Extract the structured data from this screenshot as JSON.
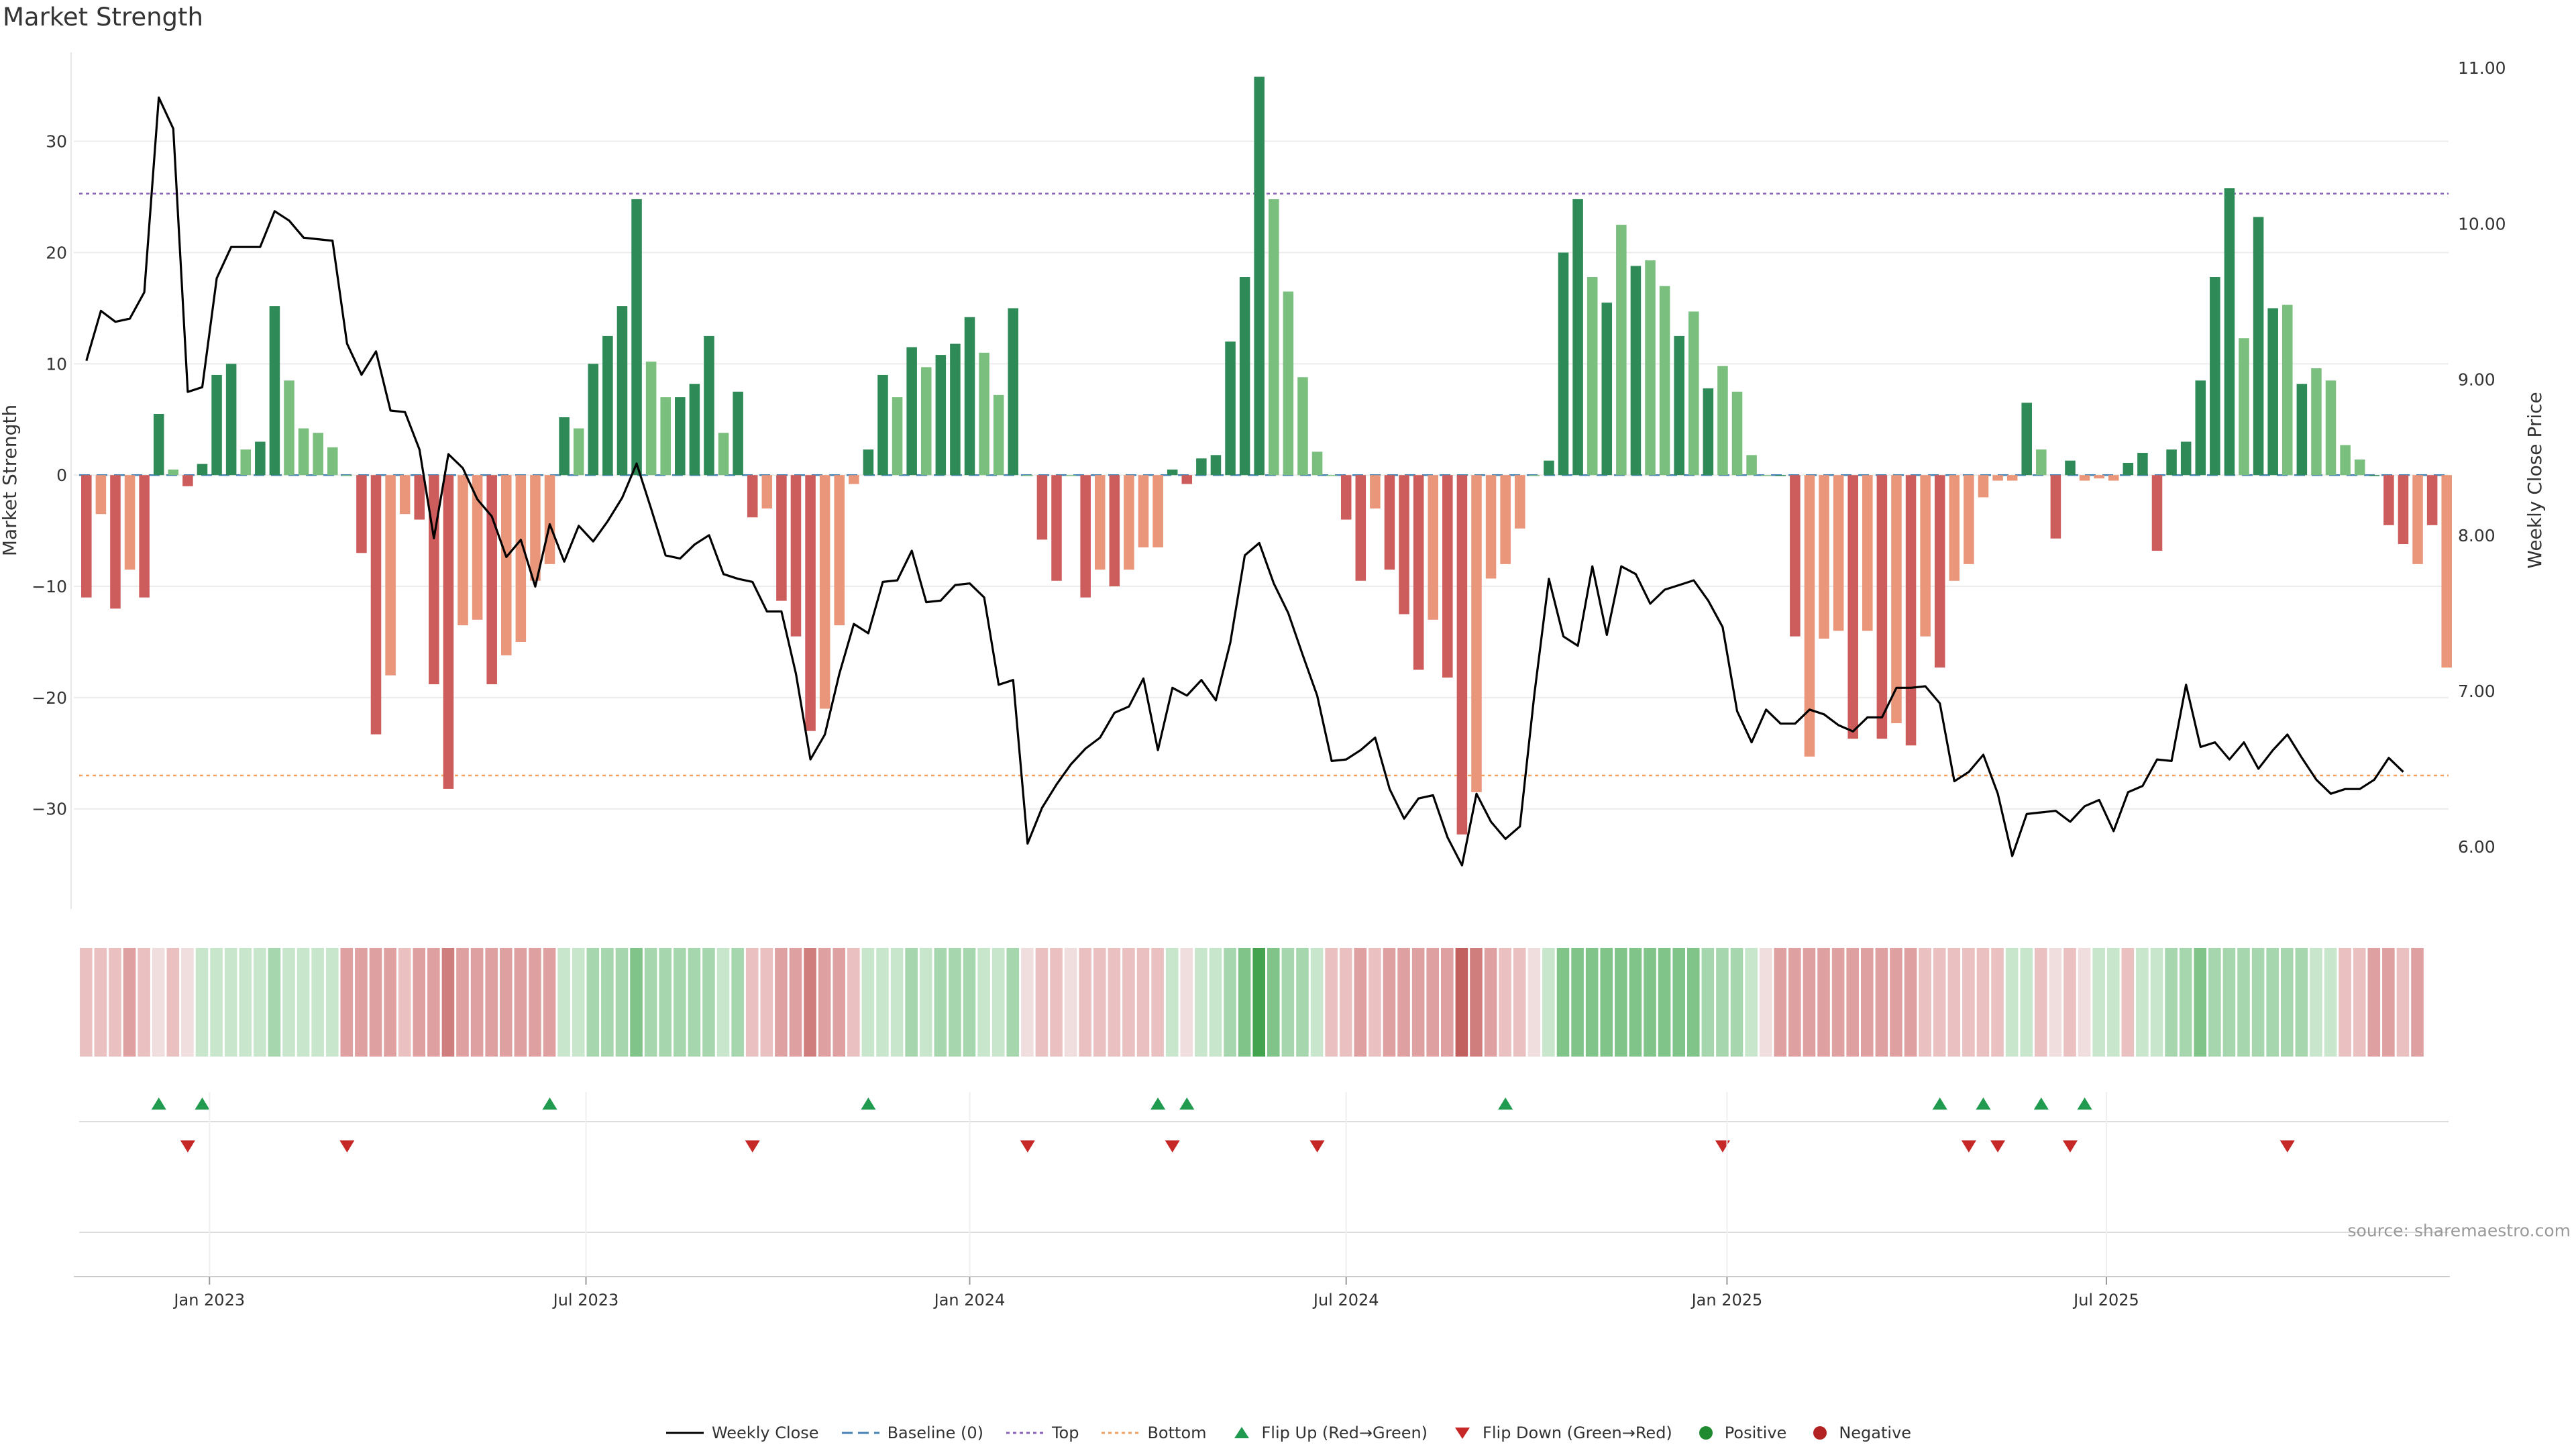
{
  "title": "Market Strength",
  "source": "source: sharemaestro.com",
  "colors": {
    "strong_green": "#2e8b57",
    "light_green": "#7bbf7f",
    "strong_red": "#cd5c5c",
    "light_red": "#e9967a",
    "price_line": "#000000",
    "baseline": "#4682b4",
    "top": "#8a63b8",
    "bottom": "#f0a060",
    "flip_up": "#1f9a4f",
    "flip_down": "#c62828"
  },
  "chart_data": {
    "type": "bar",
    "title": "Market Strength",
    "ylabel": "Market Strength",
    "y2label": "Weekly Close Price",
    "ylim": [
      -39,
      38
    ],
    "y2lim": [
      5.6,
      11.1
    ],
    "yticks": [
      -30,
      -20,
      -10,
      0,
      10,
      20,
      30
    ],
    "ytick_labels": [
      "−30",
      "−20",
      "−10",
      "0",
      "10",
      "20",
      "30"
    ],
    "y2ticks": [
      6.0,
      7.0,
      8.0,
      9.0,
      10.0,
      11.0
    ],
    "y2tick_labels": [
      "6.00",
      "7.00",
      "8.00",
      "9.00",
      "10.00",
      "11.00"
    ],
    "xticks": [
      {
        "label": "Jan 2023",
        "week": 9
      },
      {
        "label": "Jul 2023",
        "week": 35
      },
      {
        "label": "Jan 2024",
        "week": 61.5
      },
      {
        "label": "Jul 2024",
        "week": 87.5
      },
      {
        "label": "Jan 2025",
        "week": 113.8
      },
      {
        "label": "Jul 2025",
        "week": 140
      }
    ],
    "top_line": 25.3,
    "bottom_line": -27,
    "strength": [
      -11,
      -3.5,
      -12,
      -8.5,
      -11,
      5.5,
      0.5,
      -1,
      1,
      9,
      10,
      2.3,
      3,
      15.2,
      8.5,
      4.2,
      3.8,
      2.5,
      0,
      -7,
      -23.3,
      -18,
      -3.5,
      -4,
      -18.8,
      -28.2,
      -13.5,
      -13,
      -18.8,
      -16.2,
      -15,
      -9.5,
      -8,
      5.2,
      4.2,
      10,
      12.5,
      15.2,
      24.8,
      10.2,
      7,
      7,
      8.2,
      12.5,
      3.8,
      7.5,
      -3.8,
      -3,
      -11.3,
      -14.5,
      -23,
      -21,
      -13.5,
      -0.8,
      2.3,
      9,
      7,
      11.5,
      9.7,
      10.8,
      11.8,
      14.2,
      11,
      7.2,
      15,
      0,
      -5.8,
      -9.5,
      0,
      -11,
      -8.5,
      -10,
      -8.5,
      -6.5,
      -6.5,
      0.5,
      -0.8,
      1.5,
      1.8,
      12,
      17.8,
      35.8,
      24.8,
      16.5,
      8.8,
      2.1,
      0,
      -4,
      -9.5,
      -3,
      -8.5,
      -12.5,
      -17.5,
      -13,
      -18.2,
      -32.3,
      -28.5,
      -9.3,
      -8,
      -4.8,
      0,
      1.3,
      20,
      24.8,
      17.8,
      15.5,
      22.5,
      18.8,
      19.3,
      17,
      12.5,
      14.7,
      7.8,
      9.8,
      7.5,
      1.8,
      0,
      0,
      -14.5,
      -25.3,
      -14.7,
      -14,
      -23.7,
      -14,
      -23.7,
      -22.3,
      -24.3,
      -14.5,
      -17.3,
      -9.5,
      -8,
      -2,
      -0.5,
      -0.5,
      6.5,
      2.3,
      -5.7,
      1.3,
      -0.5,
      -0.3,
      -0.5,
      1.1,
      2,
      -6.8,
      2.3,
      3,
      8.5,
      17.8,
      25.8,
      12.3,
      23.2,
      15,
      15.3,
      8.2,
      9.6,
      8.5,
      2.7,
      1.4,
      0,
      -4.5,
      -6.2,
      -8,
      -4.5,
      -17.3
    ],
    "bar_shade": [
      2,
      1,
      2,
      1,
      2,
      2,
      1,
      2,
      2,
      2,
      2,
      1,
      2,
      2,
      1,
      1,
      1,
      1,
      0,
      2,
      2,
      1,
      1,
      2,
      2,
      2,
      1,
      1,
      2,
      1,
      1,
      1,
      1,
      2,
      1,
      2,
      2,
      2,
      2,
      1,
      1,
      2,
      2,
      2,
      1,
      2,
      2,
      1,
      2,
      2,
      2,
      1,
      1,
      1,
      2,
      2,
      1,
      2,
      1,
      2,
      2,
      2,
      1,
      1,
      2,
      0,
      2,
      2,
      0,
      2,
      1,
      2,
      1,
      1,
      1,
      2,
      2,
      2,
      2,
      2,
      2,
      2,
      1,
      1,
      1,
      1,
      0,
      2,
      2,
      1,
      2,
      2,
      2,
      1,
      2,
      2,
      1,
      1,
      1,
      1,
      0,
      2,
      2,
      2,
      1,
      2,
      1,
      2,
      1,
      1,
      2,
      1,
      2,
      1,
      1,
      0,
      0,
      2,
      2,
      1,
      1,
      1,
      2,
      1,
      2,
      1,
      2,
      1,
      2,
      1,
      1,
      1,
      1,
      1,
      2,
      1,
      2,
      2,
      1,
      1,
      1,
      2,
      2,
      2,
      2,
      2,
      2,
      2,
      2,
      1,
      2,
      2,
      1,
      2,
      1,
      1,
      1,
      0,
      2,
      2,
      2,
      1,
      2
    ],
    "price": [
      9.12,
      9.44,
      9.37,
      9.39,
      9.56,
      10.81,
      10.61,
      8.92,
      8.95,
      9.65,
      9.85,
      9.85,
      9.85,
      10.08,
      10.02,
      9.91,
      9.9,
      9.89,
      9.23,
      9.03,
      9.18,
      8.8,
      8.79,
      8.55,
      7.98,
      8.52,
      8.43,
      8.23,
      8.12,
      7.86,
      7.97,
      7.67,
      8.07,
      7.83,
      8.06,
      7.96,
      8.09,
      8.24,
      8.46,
      8.17,
      7.87,
      7.85,
      7.94,
      8.0,
      7.75,
      7.72,
      7.7,
      7.51,
      7.51,
      7.11,
      6.56,
      6.72,
      7.11,
      7.43,
      7.37,
      7.7,
      7.71,
      7.9,
      7.57,
      7.58,
      7.68,
      7.69,
      7.6,
      7.04,
      7.07,
      6.02,
      6.25,
      6.4,
      6.53,
      6.63,
      6.7,
      6.86,
      6.9,
      7.08,
      6.62,
      7.02,
      6.97,
      7.07,
      6.94,
      7.31,
      7.87,
      7.95,
      7.69,
      7.5,
      7.23,
      6.97,
      6.55,
      6.56,
      6.62,
      6.7,
      6.37,
      6.18,
      6.31,
      6.33,
      6.06,
      5.88,
      6.34,
      6.16,
      6.05,
      6.13,
      6.98,
      7.72,
      7.35,
      7.29,
      7.8,
      7.36,
      7.8,
      7.75,
      7.56,
      7.65,
      7.68,
      7.71,
      7.58,
      7.41,
      6.87,
      6.67,
      6.88,
      6.79,
      6.79,
      6.88,
      6.85,
      6.78,
      6.74,
      6.83,
      6.83,
      7.02,
      7.02,
      7.03,
      6.92,
      6.42,
      6.48,
      6.59,
      6.34,
      5.94,
      6.21,
      6.22,
      6.23,
      6.16,
      6.26,
      6.3,
      6.1,
      6.35,
      6.39,
      6.56,
      6.55,
      7.04,
      6.64,
      6.67,
      6.56,
      6.67,
      6.5,
      6.62,
      6.72,
      6.57,
      6.43,
      6.34,
      6.37,
      6.37,
      6.43,
      6.57,
      6.48
    ],
    "heat": [
      -1,
      -1,
      -1,
      -2,
      -1,
      0,
      -1,
      0,
      1,
      1,
      1,
      1,
      1,
      2,
      1,
      1,
      1,
      1,
      -2,
      -2,
      -2,
      -2,
      -1,
      -2,
      -2,
      -3,
      -2,
      -2,
      -2,
      -2,
      -2,
      -2,
      -2,
      1,
      1,
      2,
      2,
      2,
      3,
      2,
      2,
      2,
      2,
      2,
      1,
      2,
      -1,
      -1,
      -2,
      -2,
      -3,
      -2,
      -2,
      -1,
      1,
      1,
      1,
      2,
      1,
      2,
      2,
      2,
      1,
      1,
      2,
      0,
      -1,
      -1,
      0,
      -1,
      -1,
      -1,
      -1,
      -1,
      -1,
      1,
      0,
      1,
      1,
      2,
      3,
      4,
      3,
      2,
      2,
      1,
      -1,
      -1,
      -2,
      -1,
      -2,
      -2,
      -2,
      -2,
      -2,
      -4,
      -3,
      -2,
      -1,
      -1,
      0,
      1,
      3,
      3,
      3,
      3,
      3,
      3,
      3,
      3,
      3,
      3,
      2,
      2,
      2,
      1,
      0,
      -2,
      -2,
      -2,
      -2,
      -2,
      -2,
      -2,
      -2,
      -2,
      -2,
      -1,
      -1,
      -1,
      -1,
      -1,
      -1,
      1,
      1,
      -1,
      0,
      -1,
      0,
      1,
      1,
      -1,
      1,
      1,
      2,
      2,
      3,
      2,
      2,
      2,
      2,
      2,
      2,
      2,
      1,
      1,
      -1,
      -1,
      -2,
      -2,
      -1,
      -2
    ],
    "flip_up_weeks": [
      5,
      8,
      32,
      54,
      74,
      76,
      98,
      128,
      131,
      135,
      138
    ],
    "flip_down_weeks": [
      7,
      18,
      46,
      65,
      75,
      85,
      113,
      130,
      132,
      137,
      152
    ]
  },
  "legend": [
    {
      "key": "weekly_close",
      "label": "Weekly Close"
    },
    {
      "key": "baseline",
      "label": "Baseline (0)"
    },
    {
      "key": "top",
      "label": "Top"
    },
    {
      "key": "bottom",
      "label": "Bottom"
    },
    {
      "key": "flip_up",
      "label": "Flip Up (Red→Green)"
    },
    {
      "key": "flip_down",
      "label": "Flip Down (Green→Red)"
    },
    {
      "key": "positive",
      "label": "Positive"
    },
    {
      "key": "negative",
      "label": "Negative"
    }
  ]
}
